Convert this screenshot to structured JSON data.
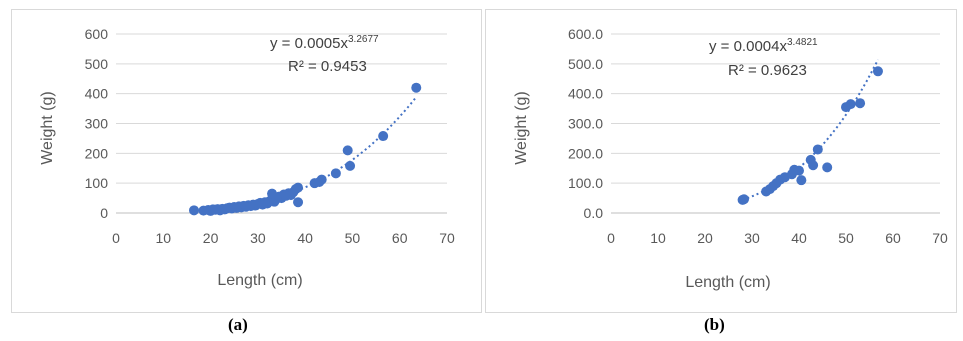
{
  "colors": {
    "marker": "#4472c4",
    "trend": "#4472c4",
    "grid": "#d9d9d9",
    "text": "#595959"
  },
  "captions": {
    "a": "(a)",
    "b": "(b)"
  },
  "chart_data": [
    {
      "type": "scatter",
      "id": "a",
      "title": "",
      "xlabel": "Length (cm)",
      "ylabel": "Weight (g)",
      "xlim": [
        0,
        70
      ],
      "ylim": [
        0,
        600
      ],
      "xticks": [
        0,
        10,
        20,
        30,
        40,
        50,
        60,
        70
      ],
      "yticks": [
        0,
        100,
        200,
        300,
        400,
        500,
        600
      ],
      "x_tick_labels": [
        "0",
        "10",
        "20",
        "30",
        "40",
        "50",
        "60",
        "70"
      ],
      "y_tick_labels": [
        "0",
        "100",
        "200",
        "300",
        "400",
        "500",
        "600"
      ],
      "grid": "horizontal",
      "equation": {
        "base": "y = 0.0005x",
        "exponent": "3.2677"
      },
      "r2": "R² = 0.9453",
      "trendline": {
        "type": "power",
        "coef": 0.0005,
        "exp": 3.2677
      },
      "points": [
        [
          16.5,
          9
        ],
        [
          18.5,
          8
        ],
        [
          19.5,
          10
        ],
        [
          20,
          7
        ],
        [
          20.5,
          12
        ],
        [
          21,
          11
        ],
        [
          21.5,
          13
        ],
        [
          22,
          9
        ],
        [
          22.5,
          14
        ],
        [
          23,
          12
        ],
        [
          23.5,
          16
        ],
        [
          24,
          18
        ],
        [
          24.5,
          15
        ],
        [
          25,
          20
        ],
        [
          25.5,
          17
        ],
        [
          26,
          22
        ],
        [
          26.5,
          19
        ],
        [
          27,
          24
        ],
        [
          27.5,
          21
        ],
        [
          28,
          26
        ],
        [
          28.5,
          23
        ],
        [
          29,
          28
        ],
        [
          29.5,
          25
        ],
        [
          30,
          30
        ],
        [
          30.5,
          34
        ],
        [
          31,
          28
        ],
        [
          31.5,
          36
        ],
        [
          32,
          32
        ],
        [
          32.5,
          40
        ],
        [
          33,
          45
        ],
        [
          33.5,
          38
        ],
        [
          34,
          48
        ],
        [
          34.5,
          55
        ],
        [
          35,
          50
        ],
        [
          35.5,
          62
        ],
        [
          36,
          58
        ],
        [
          36.5,
          66
        ],
        [
          37,
          60
        ],
        [
          37.5,
          70
        ],
        [
          38,
          80
        ],
        [
          38.5,
          85
        ],
        [
          38.5,
          36
        ],
        [
          33,
          65
        ],
        [
          42,
          100
        ],
        [
          43,
          104
        ],
        [
          43.5,
          112
        ],
        [
          46.5,
          133
        ],
        [
          49,
          210
        ],
        [
          49.5,
          158
        ],
        [
          56.5,
          258
        ],
        [
          63.5,
          420
        ]
      ]
    },
    {
      "type": "scatter",
      "id": "b",
      "title": "",
      "xlabel": "Length (cm)",
      "ylabel": "Weight (g)",
      "xlim": [
        0,
        70
      ],
      "ylim": [
        0,
        600
      ],
      "xticks": [
        0,
        10,
        20,
        30,
        40,
        50,
        60,
        70
      ],
      "yticks": [
        0,
        100,
        200,
        300,
        400,
        500,
        600
      ],
      "x_tick_labels": [
        "0",
        "10",
        "20",
        "30",
        "40",
        "50",
        "60",
        "70"
      ],
      "y_tick_labels": [
        "0.0",
        "100.0",
        "200.0",
        "300.0",
        "400.0",
        "500.0",
        "600.0"
      ],
      "grid": "horizontal",
      "equation": {
        "base": "y = 0.0004x",
        "exponent": "3.4821"
      },
      "r2": "R² = 0.9623",
      "trendline": {
        "type": "power",
        "coef": 0.0004,
        "exp": 3.4821
      },
      "points": [
        [
          28,
          44
        ],
        [
          28.3,
          46
        ],
        [
          33,
          72
        ],
        [
          33.8,
          80
        ],
        [
          34.5,
          90
        ],
        [
          35.2,
          100
        ],
        [
          36,
          112
        ],
        [
          37,
          120
        ],
        [
          38.5,
          130
        ],
        [
          39,
          145
        ],
        [
          40,
          142
        ],
        [
          40.5,
          110
        ],
        [
          42.5,
          178
        ],
        [
          43,
          160
        ],
        [
          44,
          213
        ],
        [
          46,
          153
        ],
        [
          50,
          355
        ],
        [
          51,
          365
        ],
        [
          53,
          368
        ],
        [
          56.8,
          475
        ]
      ]
    }
  ]
}
